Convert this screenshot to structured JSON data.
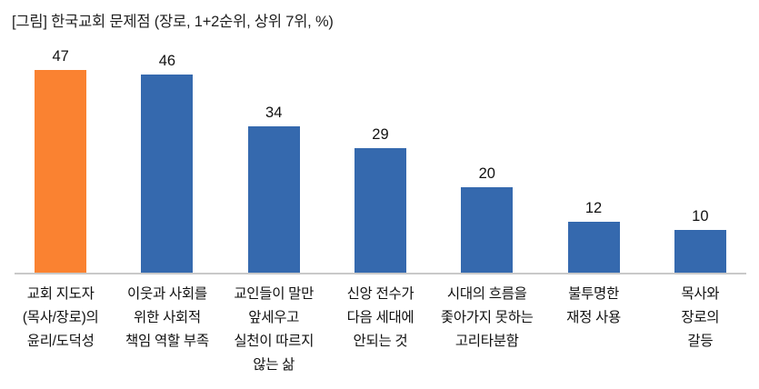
{
  "title": "[그림] 한국교회 문제점 (장로, 1+2순위, 상위 7위, %)",
  "colors": {
    "bar_highlight": "#FA8231",
    "bar_default": "#3569AE",
    "axis_line": "#C9C9C9"
  },
  "chart_data": {
    "type": "bar",
    "title": "[그림] 한국교회 문제점 (장로, 1+2순위, 상위 7위, %)",
    "unit": "%",
    "highlight_index": 0,
    "grid": false,
    "legend": false,
    "value_labels_shown": true,
    "categories": [
      "교회 지도자\n(목사/장로)의\n윤리/도덕성",
      "이웃과 사회를\n위한 사회적\n책임 역할 부족",
      "교인들이 말만\n앞세우고\n실천이 따르지\n않는 삶",
      "신앙 전수가\n다음 세대에\n안되는 것",
      "시대의 흐름을\n좇아가지 못하는\n고리타분함",
      "불투명한\n재정 사용",
      "목사와\n장로의\n갈등"
    ],
    "values": [
      47,
      46,
      34,
      29,
      20,
      12,
      10
    ]
  }
}
